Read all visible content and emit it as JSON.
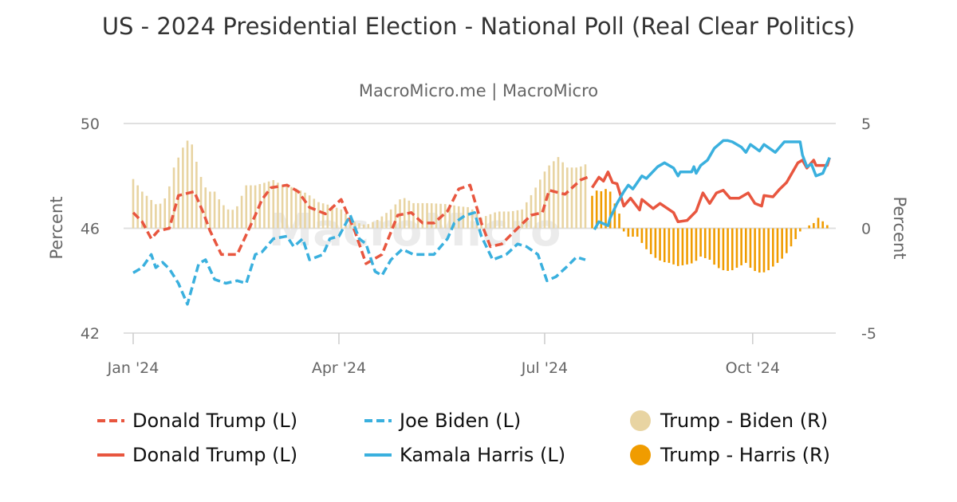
{
  "chart_data": {
    "type": "line+bar",
    "title": "US - 2024 Presidential Election - National Poll (Real Clear Politics)",
    "subtitle": "MacroMicro.me | MacroMicro",
    "watermark": "MacroMicro",
    "ylabel_left": "Percent",
    "ylabel_right": "Percent",
    "ylim_left": [
      42,
      50
    ],
    "yticks_left": [
      "42",
      "46",
      "50"
    ],
    "ylim_right": [
      -5,
      5
    ],
    "yticks_right": [
      "-5",
      "0",
      "5"
    ],
    "xlim": [
      "2024-01-01",
      "2024-11-04"
    ],
    "xticks": [
      {
        "date": "2024-01-01",
        "label": "Jan '24"
      },
      {
        "date": "2024-04-01",
        "label": "Apr '24"
      },
      {
        "date": "2024-07-01",
        "label": "Jul '24"
      },
      {
        "date": "2024-10-01",
        "label": "Oct '24"
      }
    ],
    "grid": true,
    "legend_position": "bottom",
    "series": [
      {
        "name": "Donald Trump (L)",
        "kind": "line",
        "style": "dashed",
        "axis": "left",
        "color": "#e8563f",
        "points": [
          [
            "2024-01-01",
            46.6
          ],
          [
            "2024-01-05",
            46.25
          ],
          [
            "2024-01-09",
            45.6
          ],
          [
            "2024-01-12",
            45.9
          ],
          [
            "2024-01-17",
            46.0
          ],
          [
            "2024-01-21",
            47.25
          ],
          [
            "2024-01-28",
            47.4
          ],
          [
            "2024-02-01",
            46.6
          ],
          [
            "2024-02-04",
            45.9
          ],
          [
            "2024-02-09",
            45.0
          ],
          [
            "2024-02-16",
            45.0
          ],
          [
            "2024-02-24",
            46.5
          ],
          [
            "2024-02-27",
            47.1
          ],
          [
            "2024-03-02",
            47.55
          ],
          [
            "2024-03-09",
            47.65
          ],
          [
            "2024-03-14",
            47.4
          ],
          [
            "2024-03-19",
            46.8
          ],
          [
            "2024-03-26",
            46.55
          ],
          [
            "2024-04-02",
            47.1
          ],
          [
            "2024-04-08",
            45.9
          ],
          [
            "2024-04-13",
            44.65
          ],
          [
            "2024-04-20",
            45.0
          ],
          [
            "2024-04-27",
            46.5
          ],
          [
            "2024-05-03",
            46.6
          ],
          [
            "2024-05-08",
            46.2
          ],
          [
            "2024-05-13",
            46.2
          ],
          [
            "2024-05-19",
            46.65
          ],
          [
            "2024-05-24",
            47.5
          ],
          [
            "2024-05-29",
            47.65
          ],
          [
            "2024-06-03",
            46.2
          ],
          [
            "2024-06-07",
            45.3
          ],
          [
            "2024-06-12",
            45.4
          ],
          [
            "2024-06-19",
            46.0
          ],
          [
            "2024-06-25",
            46.5
          ],
          [
            "2024-06-30",
            46.6
          ],
          [
            "2024-07-03",
            47.45
          ],
          [
            "2024-07-10",
            47.3
          ],
          [
            "2024-07-17",
            47.85
          ],
          [
            "2024-07-20",
            47.95
          ]
        ]
      },
      {
        "name": "Joe Biden (L)",
        "kind": "line",
        "style": "dashed",
        "axis": "left",
        "color": "#3ab0de",
        "points": [
          [
            "2024-01-01",
            44.3
          ],
          [
            "2024-01-05",
            44.5
          ],
          [
            "2024-01-09",
            45.0
          ],
          [
            "2024-01-11",
            44.5
          ],
          [
            "2024-01-14",
            44.7
          ],
          [
            "2024-01-17",
            44.45
          ],
          [
            "2024-01-21",
            43.9
          ],
          [
            "2024-01-25",
            43.1
          ],
          [
            "2024-01-30",
            44.65
          ],
          [
            "2024-02-02",
            44.8
          ],
          [
            "2024-02-06",
            44.05
          ],
          [
            "2024-02-11",
            43.9
          ],
          [
            "2024-02-16",
            44.0
          ],
          [
            "2024-02-20",
            43.9
          ],
          [
            "2024-02-24",
            45.0
          ],
          [
            "2024-02-27",
            45.1
          ],
          [
            "2024-03-03",
            45.6
          ],
          [
            "2024-03-09",
            45.7
          ],
          [
            "2024-03-12",
            45.3
          ],
          [
            "2024-03-16",
            45.6
          ],
          [
            "2024-03-19",
            44.8
          ],
          [
            "2024-03-25",
            45.0
          ],
          [
            "2024-03-28",
            45.6
          ],
          [
            "2024-04-01",
            45.7
          ],
          [
            "2024-04-06",
            46.5
          ],
          [
            "2024-04-10",
            45.6
          ],
          [
            "2024-04-13",
            45.4
          ],
          [
            "2024-04-17",
            44.35
          ],
          [
            "2024-04-20",
            44.2
          ],
          [
            "2024-04-24",
            44.8
          ],
          [
            "2024-04-29",
            45.2
          ],
          [
            "2024-05-04",
            45.0
          ],
          [
            "2024-05-13",
            45.0
          ],
          [
            "2024-05-19",
            45.6
          ],
          [
            "2024-05-22",
            46.2
          ],
          [
            "2024-05-27",
            46.5
          ],
          [
            "2024-05-31",
            46.6
          ],
          [
            "2024-06-03",
            45.7
          ],
          [
            "2024-06-08",
            44.8
          ],
          [
            "2024-06-14",
            45.0
          ],
          [
            "2024-06-19",
            45.4
          ],
          [
            "2024-06-23",
            45.3
          ],
          [
            "2024-06-28",
            45.0
          ],
          [
            "2024-07-02",
            44.0
          ],
          [
            "2024-07-06",
            44.15
          ],
          [
            "2024-07-11",
            44.55
          ],
          [
            "2024-07-15",
            44.9
          ],
          [
            "2024-07-19",
            44.8
          ]
        ]
      },
      {
        "name": "Donald Trump (L)",
        "kind": "line",
        "style": "solid",
        "axis": "left",
        "color": "#e8563f",
        "points": [
          [
            "2024-07-22",
            47.55
          ],
          [
            "2024-07-25",
            47.95
          ],
          [
            "2024-07-27",
            47.8
          ],
          [
            "2024-07-29",
            48.15
          ],
          [
            "2024-07-31",
            47.75
          ],
          [
            "2024-08-02",
            47.7
          ],
          [
            "2024-08-05",
            46.85
          ],
          [
            "2024-08-08",
            47.15
          ],
          [
            "2024-08-12",
            46.7
          ],
          [
            "2024-08-13",
            47.1
          ],
          [
            "2024-08-18",
            46.75
          ],
          [
            "2024-08-21",
            46.95
          ],
          [
            "2024-08-27",
            46.6
          ],
          [
            "2024-08-29",
            46.25
          ],
          [
            "2024-09-02",
            46.3
          ],
          [
            "2024-09-06",
            46.65
          ],
          [
            "2024-09-09",
            47.35
          ],
          [
            "2024-09-12",
            46.95
          ],
          [
            "2024-09-15",
            47.35
          ],
          [
            "2024-09-18",
            47.45
          ],
          [
            "2024-09-21",
            47.15
          ],
          [
            "2024-09-25",
            47.15
          ],
          [
            "2024-09-29",
            47.35
          ],
          [
            "2024-10-02",
            46.95
          ],
          [
            "2024-10-05",
            46.85
          ],
          [
            "2024-10-06",
            47.25
          ],
          [
            "2024-10-10",
            47.2
          ],
          [
            "2024-10-13",
            47.5
          ],
          [
            "2024-10-16",
            47.75
          ],
          [
            "2024-10-21",
            48.5
          ],
          [
            "2024-10-23",
            48.6
          ],
          [
            "2024-10-25",
            48.3
          ],
          [
            "2024-10-28",
            48.6
          ],
          [
            "2024-10-29",
            48.4
          ],
          [
            "2024-11-03",
            48.4
          ],
          [
            "2024-11-04",
            48.7
          ]
        ]
      },
      {
        "name": "Kamala Harris (L)",
        "kind": "line",
        "style": "solid",
        "axis": "left",
        "color": "#3ab0de",
        "points": [
          [
            "2024-07-23",
            45.95
          ],
          [
            "2024-07-25",
            46.25
          ],
          [
            "2024-07-29",
            46.1
          ],
          [
            "2024-07-30",
            46.4
          ],
          [
            "2024-08-02",
            46.95
          ],
          [
            "2024-08-05",
            47.4
          ],
          [
            "2024-08-07",
            47.65
          ],
          [
            "2024-08-09",
            47.5
          ],
          [
            "2024-08-13",
            48.0
          ],
          [
            "2024-08-15",
            47.9
          ],
          [
            "2024-08-20",
            48.35
          ],
          [
            "2024-08-23",
            48.5
          ],
          [
            "2024-08-27",
            48.3
          ],
          [
            "2024-08-29",
            48.0
          ],
          [
            "2024-08-30",
            48.15
          ],
          [
            "2024-09-04",
            48.15
          ],
          [
            "2024-09-05",
            48.35
          ],
          [
            "2024-09-06",
            48.1
          ],
          [
            "2024-09-08",
            48.4
          ],
          [
            "2024-09-11",
            48.6
          ],
          [
            "2024-09-14",
            49.05
          ],
          [
            "2024-09-18",
            49.35
          ],
          [
            "2024-09-20",
            49.35
          ],
          [
            "2024-09-22",
            49.3
          ],
          [
            "2024-09-26",
            49.1
          ],
          [
            "2024-09-28",
            48.9
          ],
          [
            "2024-09-30",
            49.2
          ],
          [
            "2024-10-04",
            48.95
          ],
          [
            "2024-10-06",
            49.2
          ],
          [
            "2024-10-11",
            48.9
          ],
          [
            "2024-10-15",
            49.3
          ],
          [
            "2024-10-18",
            49.3
          ],
          [
            "2024-10-22",
            49.3
          ],
          [
            "2024-10-23",
            48.8
          ],
          [
            "2024-10-25",
            48.35
          ],
          [
            "2024-10-27",
            48.45
          ],
          [
            "2024-10-29",
            48.0
          ],
          [
            "2024-11-01",
            48.1
          ],
          [
            "2024-11-04",
            48.7
          ]
        ]
      },
      {
        "name": "Trump - Biden (R)",
        "kind": "bar",
        "axis": "right",
        "color": "#e8d4a2",
        "points": [
          [
            "2024-01-01",
            2.35
          ],
          [
            "2024-01-05",
            1.75
          ],
          [
            "2024-01-09",
            1.35
          ],
          [
            "2024-01-12",
            1.05
          ],
          [
            "2024-01-16",
            1.55
          ],
          [
            "2024-01-19",
            2.9
          ],
          [
            "2024-01-23",
            3.85
          ],
          [
            "2024-01-26",
            4.35
          ],
          [
            "2024-01-28",
            3.65
          ],
          [
            "2024-01-30",
            2.7
          ],
          [
            "2024-02-02",
            1.95
          ],
          [
            "2024-02-04",
            1.75
          ],
          [
            "2024-02-06",
            1.75
          ],
          [
            "2024-02-09",
            1.2
          ],
          [
            "2024-02-13",
            0.8
          ],
          [
            "2024-02-16",
            1.05
          ],
          [
            "2024-02-20",
            2.05
          ],
          [
            "2024-02-24",
            2.05
          ],
          [
            "2024-02-29",
            2.2
          ],
          [
            "2024-03-03",
            2.3
          ],
          [
            "2024-03-07",
            2.05
          ],
          [
            "2024-03-12",
            1.95
          ],
          [
            "2024-03-18",
            1.65
          ],
          [
            "2024-03-23",
            1.25
          ],
          [
            "2024-03-28",
            1.1
          ],
          [
            "2024-04-02",
            0.9
          ],
          [
            "2024-04-08",
            0.3
          ],
          [
            "2024-04-13",
            0.15
          ],
          [
            "2024-04-18",
            0.4
          ],
          [
            "2024-04-24",
            0.9
          ],
          [
            "2024-04-29",
            1.5
          ],
          [
            "2024-05-04",
            1.2
          ],
          [
            "2024-05-11",
            1.2
          ],
          [
            "2024-05-19",
            1.15
          ],
          [
            "2024-05-24",
            1.05
          ],
          [
            "2024-05-29",
            1.0
          ],
          [
            "2024-06-03",
            0.5
          ],
          [
            "2024-06-10",
            0.8
          ],
          [
            "2024-06-16",
            0.8
          ],
          [
            "2024-06-21",
            0.9
          ],
          [
            "2024-06-26",
            1.75
          ],
          [
            "2024-07-02",
            2.9
          ],
          [
            "2024-07-07",
            3.4
          ],
          [
            "2024-07-11",
            2.9
          ],
          [
            "2024-07-16",
            2.9
          ],
          [
            "2024-07-20",
            3.1
          ]
        ]
      },
      {
        "name": "Trump - Harris (R)",
        "kind": "bar",
        "axis": "right",
        "color": "#f09c00",
        "points": [
          [
            "2024-07-22",
            1.55
          ],
          [
            "2024-07-24",
            1.8
          ],
          [
            "2024-07-27",
            1.75
          ],
          [
            "2024-07-29",
            2.0
          ],
          [
            "2024-07-30",
            1.75
          ],
          [
            "2024-08-02",
            0.9
          ],
          [
            "2024-08-04",
            0.5
          ],
          [
            "2024-08-05",
            -0.15
          ],
          [
            "2024-08-07",
            -0.4
          ],
          [
            "2024-08-11",
            -0.4
          ],
          [
            "2024-08-13",
            -0.7
          ],
          [
            "2024-08-15",
            -1.0
          ],
          [
            "2024-08-18",
            -1.35
          ],
          [
            "2024-08-22",
            -1.6
          ],
          [
            "2024-08-25",
            -1.65
          ],
          [
            "2024-08-29",
            -1.8
          ],
          [
            "2024-09-01",
            -1.75
          ],
          [
            "2024-09-05",
            -1.65
          ],
          [
            "2024-09-08",
            -1.35
          ],
          [
            "2024-09-12",
            -1.5
          ],
          [
            "2024-09-15",
            -1.85
          ],
          [
            "2024-09-19",
            -2.05
          ],
          [
            "2024-09-22",
            -2.0
          ],
          [
            "2024-09-28",
            -1.65
          ],
          [
            "2024-10-01",
            -2.0
          ],
          [
            "2024-10-05",
            -2.15
          ],
          [
            "2024-10-08",
            -2.0
          ],
          [
            "2024-10-12",
            -1.65
          ],
          [
            "2024-10-15",
            -1.35
          ],
          [
            "2024-10-19",
            -0.7
          ],
          [
            "2024-10-22",
            -0.15
          ],
          [
            "2024-10-25",
            0.08
          ],
          [
            "2024-10-28",
            0.25
          ],
          [
            "2024-10-30",
            0.5
          ],
          [
            "2024-11-02",
            0.25
          ],
          [
            "2024-11-04",
            0.05
          ]
        ]
      }
    ]
  },
  "legend": [
    {
      "label": "Donald Trump (L)",
      "marker": "dashed-line",
      "color": "#e8563f"
    },
    {
      "label": "Joe Biden (L)",
      "marker": "dashed-line",
      "color": "#3ab0de"
    },
    {
      "label": "Trump - Biden (R)",
      "marker": "circle",
      "color": "#e8d4a2"
    },
    {
      "label": "Donald Trump (L)",
      "marker": "solid-line",
      "color": "#e8563f"
    },
    {
      "label": "Kamala Harris (L)",
      "marker": "solid-line",
      "color": "#3ab0de"
    },
    {
      "label": "Trump - Harris (R)",
      "marker": "circle",
      "color": "#f09c00"
    }
  ]
}
